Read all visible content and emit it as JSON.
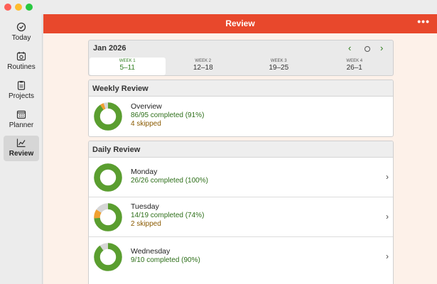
{
  "window": {
    "title": "Review"
  },
  "sidebar": {
    "items": [
      {
        "label": "Today",
        "icon": "checkmark-circle-icon",
        "active": false
      },
      {
        "label": "Routines",
        "icon": "routines-icon",
        "active": false
      },
      {
        "label": "Projects",
        "icon": "clipboard-icon",
        "active": false
      },
      {
        "label": "Planner",
        "icon": "calendar-icon",
        "active": false
      },
      {
        "label": "Review",
        "icon": "chart-line-icon",
        "active": true
      }
    ]
  },
  "header": {
    "title": "Review",
    "more_label": "•••"
  },
  "week_selector": {
    "month": "Jan 2026",
    "weeks": [
      {
        "label": "WEEK 1",
        "range": "5–11",
        "active": true
      },
      {
        "label": "WEEK 2",
        "range": "12–18",
        "active": false
      },
      {
        "label": "WEEK 3",
        "range": "19–25",
        "active": false
      },
      {
        "label": "WEEK 4",
        "range": "26–1",
        "active": false
      }
    ]
  },
  "weekly_review": {
    "heading": "Weekly Review",
    "overview": {
      "title": "Overview",
      "completed": "86/95 completed (91%)",
      "skipped": "4 skipped",
      "completed_fraction": 0.905,
      "skipped_fraction": 0.042
    }
  },
  "daily_review": {
    "heading": "Daily Review",
    "days": [
      {
        "title": "Monday",
        "completed": "26/26 completed (100%)",
        "skipped": "",
        "completed_fraction": 1.0,
        "skipped_fraction": 0
      },
      {
        "title": "Tuesday",
        "completed": "14/19 completed (74%)",
        "skipped": "2 skipped",
        "completed_fraction": 0.737,
        "skipped_fraction": 0.105
      },
      {
        "title": "Wednesday",
        "completed": "9/10 completed (90%)",
        "skipped": "",
        "completed_fraction": 0.9,
        "skipped_fraction": 0
      }
    ]
  },
  "colors": {
    "accent": "#e8482c",
    "completed": "#5a9e2f",
    "skipped": "#f0a030",
    "remaining": "#d6d6d6"
  }
}
